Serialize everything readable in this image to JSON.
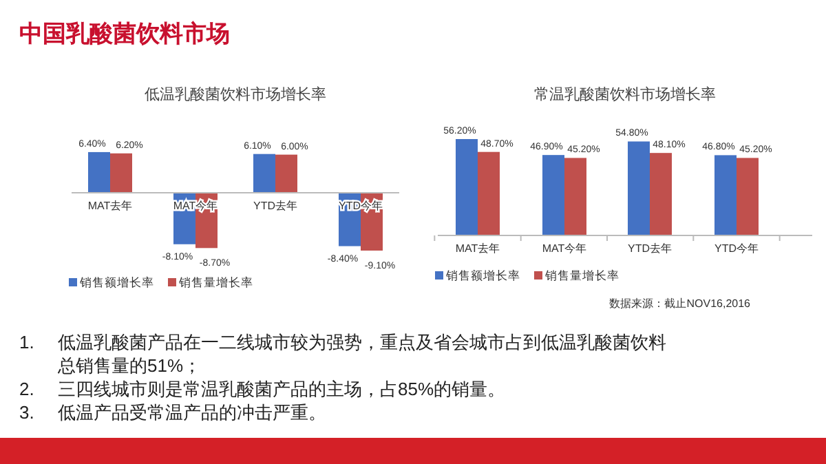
{
  "chart_data": [
    {
      "type": "other",
      "title": "中国乳酸菌饮料市场",
      "annotations": [
        "1. 低温乳酸菌产品在一二线城市较为强势，重点及省会城市占到低温乳酸菌饮料总销售量的51%；",
        "2. 三四线城市则是常温乳酸菌产品的主场，占85%的销量。",
        "3. 低温产品受常温产品的冲击严重。"
      ]
    },
    {
      "type": "bar",
      "title": "低温乳酸菌饮料市场增长率",
      "categories": [
        "MAT去年",
        "MAT今年",
        "YTD去年",
        "YTD今年"
      ],
      "legend": "bottom left",
      "series": [
        {
          "name": "销售额增长率",
          "color": "#4472c4",
          "values": [
            6.4,
            -8.1,
            6.1,
            -8.4
          ],
          "value_labels": [
            "6.40%",
            "-8.10%",
            "6.10%",
            "-8.40%"
          ]
        },
        {
          "name": "销售量增长率",
          "color": "#c0504d",
          "values": [
            6.2,
            -8.7,
            6.0,
            -9.1
          ],
          "value_labels": [
            "6.20%",
            "-8.70%",
            "6.00%",
            "-9.10%"
          ]
        }
      ]
    },
    {
      "type": "bar",
      "title": "常温乳酸菌饮料市场增长率",
      "categories": [
        "MAT去年",
        "MAT今年",
        "YTD去年",
        "YTD今年"
      ],
      "legend": "bottom left",
      "annotations": [
        "数据来源：截止NOV16,2016"
      ],
      "series": [
        {
          "name": "销售额增长率",
          "color": "#4472c4",
          "values": [
            56.2,
            46.9,
            54.8,
            46.8
          ],
          "value_labels": [
            "56.20%",
            "46.90%",
            "54.80%",
            "46.80%"
          ]
        },
        {
          "name": "销售量增长率",
          "color": "#c0504d",
          "values": [
            48.7,
            45.2,
            48.1,
            45.2
          ],
          "value_labels": [
            "48.70%",
            "45.20%",
            "48.10%",
            "45.20%"
          ]
        }
      ]
    }
  ]
}
